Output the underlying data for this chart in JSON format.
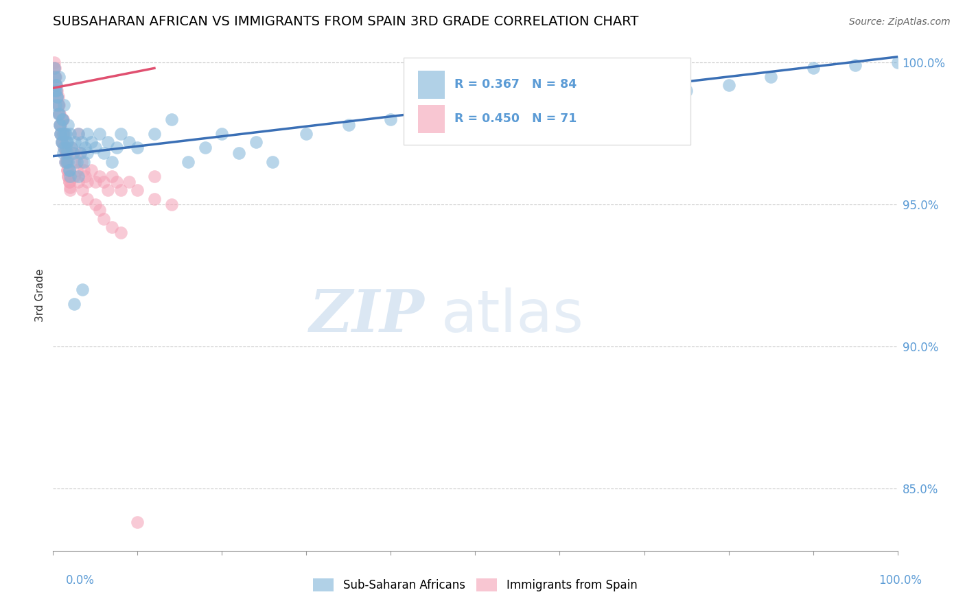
{
  "title": "SUBSAHARAN AFRICAN VS IMMIGRANTS FROM SPAIN 3RD GRADE CORRELATION CHART",
  "source": "Source: ZipAtlas.com",
  "ylabel": "3rd Grade",
  "blue_R": 0.367,
  "blue_N": 84,
  "pink_R": 0.45,
  "pink_N": 71,
  "blue_color": "#7eb3d8",
  "pink_color": "#f4a0b5",
  "blue_line_color": "#3a6fb5",
  "pink_line_color": "#e05070",
  "legend_label_blue": "Sub-Saharan Africans",
  "legend_label_pink": "Immigrants from Spain",
  "watermark_zip": "ZIP",
  "watermark_atlas": "atlas",
  "xlim": [
    0.0,
    1.0
  ],
  "ylim": [
    0.828,
    1.008
  ],
  "y_tick_positions": [
    0.85,
    0.9,
    0.95,
    1.0
  ],
  "y_tick_labels": [
    "85.0%",
    "90.0%",
    "95.0%",
    "100.0%"
  ],
  "blue_trend_x0": 0.0,
  "blue_trend_y0": 0.967,
  "blue_trend_x1": 1.0,
  "blue_trend_y1": 1.002,
  "pink_trend_x0": 0.0,
  "pink_trend_y0": 0.991,
  "pink_trend_x1": 0.12,
  "pink_trend_y1": 0.998,
  "blue_scatter_x": [
    0.002,
    0.003,
    0.004,
    0.005,
    0.006,
    0.007,
    0.008,
    0.009,
    0.01,
    0.011,
    0.012,
    0.013,
    0.014,
    0.015,
    0.016,
    0.017,
    0.018,
    0.019,
    0.02,
    0.022,
    0.024,
    0.026,
    0.028,
    0.03,
    0.032,
    0.034,
    0.036,
    0.038,
    0.04,
    0.045,
    0.05,
    0.055,
    0.06,
    0.065,
    0.07,
    0.075,
    0.08,
    0.09,
    0.1,
    0.12,
    0.14,
    0.16,
    0.18,
    0.2,
    0.22,
    0.24,
    0.26,
    0.3,
    0.35,
    0.4,
    0.5,
    0.6,
    0.7,
    0.75,
    0.8,
    0.85,
    0.9,
    0.95,
    1.0,
    0.001,
    0.002,
    0.003,
    0.004,
    0.005,
    0.006,
    0.007,
    0.008,
    0.009,
    0.01,
    0.011,
    0.012,
    0.013,
    0.014,
    0.015,
    0.016,
    0.017,
    0.018,
    0.019,
    0.02,
    0.025,
    0.03,
    0.035,
    0.04
  ],
  "blue_scatter_y": [
    0.99,
    0.985,
    0.992,
    0.988,
    0.982,
    0.995,
    0.978,
    0.975,
    0.972,
    0.98,
    0.968,
    0.985,
    0.975,
    0.97,
    0.965,
    0.972,
    0.978,
    0.962,
    0.975,
    0.97,
    0.968,
    0.972,
    0.965,
    0.975,
    0.968,
    0.972,
    0.965,
    0.97,
    0.968,
    0.972,
    0.97,
    0.975,
    0.968,
    0.972,
    0.965,
    0.97,
    0.975,
    0.972,
    0.97,
    0.975,
    0.98,
    0.965,
    0.97,
    0.975,
    0.968,
    0.972,
    0.965,
    0.975,
    0.978,
    0.98,
    0.985,
    0.99,
    0.992,
    0.99,
    0.992,
    0.995,
    0.998,
    0.999,
    1.0,
    0.998,
    0.995,
    0.992,
    0.99,
    0.988,
    0.985,
    0.982,
    0.978,
    0.975,
    0.972,
    0.98,
    0.975,
    0.97,
    0.965,
    0.975,
    0.972,
    0.968,
    0.965,
    0.962,
    0.96,
    0.915,
    0.96,
    0.92,
    0.975
  ],
  "pink_scatter_x": [
    0.001,
    0.002,
    0.003,
    0.004,
    0.005,
    0.006,
    0.007,
    0.008,
    0.009,
    0.01,
    0.011,
    0.012,
    0.013,
    0.014,
    0.015,
    0.016,
    0.017,
    0.018,
    0.019,
    0.02,
    0.022,
    0.024,
    0.026,
    0.028,
    0.03,
    0.032,
    0.034,
    0.036,
    0.038,
    0.04,
    0.045,
    0.05,
    0.055,
    0.06,
    0.065,
    0.07,
    0.075,
    0.08,
    0.09,
    0.1,
    0.12,
    0.14,
    0.001,
    0.002,
    0.003,
    0.004,
    0.005,
    0.006,
    0.007,
    0.008,
    0.009,
    0.01,
    0.011,
    0.012,
    0.013,
    0.014,
    0.015,
    0.016,
    0.017,
    0.018,
    0.019,
    0.02,
    0.025,
    0.03,
    0.035,
    0.04,
    0.05,
    0.055,
    0.06,
    0.07,
    0.08,
    0.1,
    0.12
  ],
  "pink_scatter_y": [
    0.998,
    0.995,
    0.992,
    0.99,
    0.988,
    0.985,
    0.982,
    0.978,
    0.975,
    0.972,
    0.98,
    0.975,
    0.97,
    0.965,
    0.968,
    0.965,
    0.962,
    0.96,
    0.958,
    0.956,
    0.97,
    0.968,
    0.965,
    0.962,
    0.975,
    0.968,
    0.965,
    0.962,
    0.96,
    0.958,
    0.962,
    0.958,
    0.96,
    0.958,
    0.955,
    0.96,
    0.958,
    0.955,
    0.958,
    0.955,
    0.952,
    0.95,
    1.0,
    0.998,
    0.995,
    0.992,
    0.99,
    0.988,
    0.985,
    0.982,
    0.978,
    0.975,
    0.972,
    0.98,
    0.975,
    0.97,
    0.968,
    0.965,
    0.962,
    0.96,
    0.958,
    0.955,
    0.96,
    0.958,
    0.955,
    0.952,
    0.95,
    0.948,
    0.945,
    0.942,
    0.94,
    0.838,
    0.96
  ]
}
